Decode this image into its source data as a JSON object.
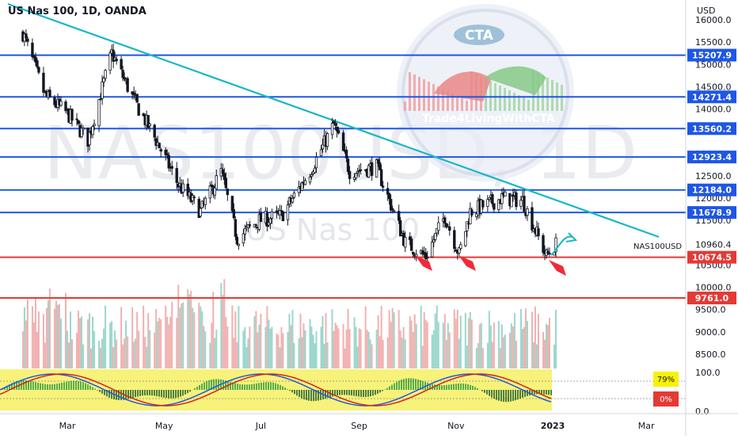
{
  "header": {
    "title": "US Nas 100, 1D, OANDA"
  },
  "watermark": {
    "main": "NAS100USD, 1D",
    "sub": "US Nas 100"
  },
  "logo": {
    "text": "CTA",
    "tagline": "Trade4LivingWithCTA"
  },
  "axis": {
    "currency": "USD"
  },
  "chart_data": {
    "type": "candlestick",
    "symbol_label": "NAS100USD",
    "price_range": [
      7800,
      16100
    ],
    "y_ticks": [
      {
        "v": 16000,
        "label": "16000.0"
      },
      {
        "v": 15500,
        "label": "15500.0"
      },
      {
        "v": 15000,
        "label": "15000.0"
      },
      {
        "v": 14500,
        "label": "14500.0"
      },
      {
        "v": 14000,
        "label": "14000.0"
      },
      {
        "v": 13500,
        "label": "13500.0"
      },
      {
        "v": 13000,
        "label": "13000.0"
      },
      {
        "v": 12500,
        "label": "12500.0"
      },
      {
        "v": 12000,
        "label": "12000.0"
      },
      {
        "v": 11500,
        "label": "11500.0"
      },
      {
        "v": 10500,
        "label": "10500.0"
      },
      {
        "v": 10000,
        "label": "10000.0"
      },
      {
        "v": 9500,
        "label": "9500.0"
      },
      {
        "v": 9000,
        "label": "9000.0"
      },
      {
        "v": 8500,
        "label": "8500.0"
      }
    ],
    "x_labels": [
      "Mar",
      "May",
      "Jul",
      "Sep",
      "Nov",
      "2023",
      "Mar"
    ],
    "horizontal_levels": [
      {
        "value": 15207.9,
        "label": "15207.9",
        "color": "#1e56e6"
      },
      {
        "value": 14271.4,
        "label": "14271.4",
        "color": "#1e56e6"
      },
      {
        "value": 13560.2,
        "label": "13560.2",
        "color": "#1e56e6"
      },
      {
        "value": 12923.4,
        "label": "12923.4",
        "color": "#1e56e6"
      },
      {
        "value": 12184.0,
        "label": "12184.0",
        "color": "#1e56e6"
      },
      {
        "value": 11678.9,
        "label": "11678.9",
        "color": "#1e56e6"
      },
      {
        "value": 10674.5,
        "label": "10674.5",
        "color": "#e53935"
      },
      {
        "value": 9761.0,
        "label": "9761.0",
        "color": "#e53935"
      }
    ],
    "last_price": {
      "value": 10960.4,
      "label": "10960.4"
    },
    "trendline_color": "#19b5c9",
    "price_path": [
      [
        "Feb 1",
        15700
      ],
      [
        "Feb 15",
        14300
      ],
      [
        "Mar 1",
        13900
      ],
      [
        "Mar 14",
        13300
      ],
      [
        "Mar 29",
        15250
      ],
      [
        "Apr 12",
        14200
      ],
      [
        "Apr 26",
        13300
      ],
      [
        "May 10",
        12300
      ],
      [
        "May 24",
        11700
      ],
      [
        "Jun 6",
        12600
      ],
      [
        "Jun 16",
        11100
      ],
      [
        "Jun 30",
        11500
      ],
      [
        "Jul 14",
        11600
      ],
      [
        "Aug 1",
        12600
      ],
      [
        "Aug 16",
        13650
      ],
      [
        "Aug 26",
        12600
      ],
      [
        "Sep 12",
        12700
      ],
      [
        "Sep 30",
        11000
      ],
      [
        "Oct 13",
        10690
      ],
      [
        "Oct 25",
        11600
      ],
      [
        "Nov 3",
        10750
      ],
      [
        "Nov 10",
        11700
      ],
      [
        "Nov 30",
        12000
      ],
      [
        "Dec 13",
        11950
      ],
      [
        "Dec 28",
        10700
      ],
      [
        "Jan 3",
        10960
      ]
    ],
    "oscillator": {
      "scale_labels": [
        "100.0",
        "0.0"
      ],
      "badge_top": "79%",
      "badge_bottom": "0%"
    }
  }
}
